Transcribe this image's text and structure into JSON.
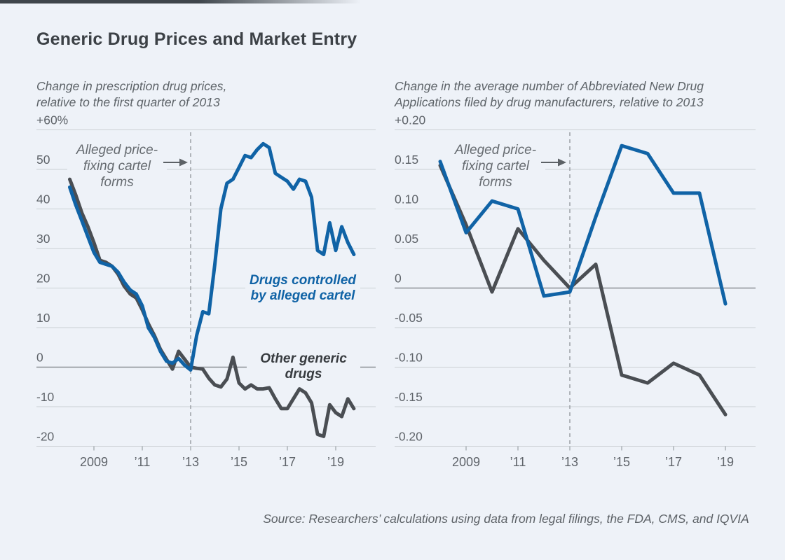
{
  "page": {
    "title": "Generic Drug Prices and Market Entry",
    "source": "Source: Researchers’ calculations using data from legal filings, the FDA, CMS, and IQVIA",
    "colors": {
      "background": "#eef2f8",
      "blue": "#1063a6",
      "gray": "#4a4e53",
      "grid": "#cbd0d4",
      "zero_line": "#898e93",
      "dashed": "#a0a5aa",
      "tick": "#a7adb2",
      "axis_text": "#5f646a",
      "annotation_text": "#666b70",
      "arrow": "#5c6166",
      "title_text": "#3c4146",
      "top_bar": "#3f464c"
    }
  },
  "chart_data": [
    {
      "type": "line",
      "subtitle_lines": [
        "Change in prescription drug prices,",
        "relative to the first quarter of 2013"
      ],
      "ylim": [
        -20,
        60
      ],
      "yticks": {
        "values": [
          60,
          50,
          40,
          30,
          20,
          10,
          0,
          -10,
          -20
        ],
        "labels": [
          "+60%",
          "50",
          "40",
          "30",
          "20",
          "10",
          "0",
          "-10",
          "-20"
        ]
      },
      "xticks": {
        "values": [
          2009,
          2011,
          2013,
          2015,
          2017,
          2019
        ],
        "labels": [
          "2009",
          "’11",
          "’13",
          "’15",
          "’17",
          "’19"
        ]
      },
      "grid": true,
      "event_line_year": 2013,
      "annotation": {
        "lines": [
          "Alleged price-",
          "fixing cartel",
          "forms"
        ]
      },
      "series": [
        {
          "name": "Drugs controlled by alleged cartel",
          "label_lines": [
            "Drugs controlled",
            "by alleged cartel"
          ],
          "color": "#1063a6",
          "x_start": 2008.0,
          "x_step": 0.25,
          "values": [
            45.5,
            41,
            37,
            33,
            29,
            26.5,
            26,
            25.5,
            24,
            21.5,
            19.5,
            18.5,
            15.5,
            10,
            7.5,
            4,
            1.5,
            1,
            2.2,
            0.5,
            -0.7,
            8,
            14,
            13.5,
            26,
            40,
            46.5,
            47.5,
            50.5,
            53.5,
            53,
            55,
            56.5,
            55.5,
            49,
            48,
            47,
            45,
            47.5,
            47,
            43,
            29.5,
            28.5,
            36.5,
            29.5,
            35.5,
            31.5,
            28.5
          ]
        },
        {
          "name": "Other generic drugs",
          "label_lines": [
            "Other generic",
            "drugs"
          ],
          "color": "#4a4e53",
          "x_start": 2008.0,
          "x_step": 0.25,
          "values": [
            47.5,
            43.5,
            39,
            35.5,
            31.5,
            27,
            26.5,
            25.5,
            23.5,
            20.5,
            18.5,
            17.5,
            14.5,
            11,
            8,
            4.5,
            2,
            -0.5,
            4,
            2,
            0,
            -0.3,
            -0.5,
            -2.8,
            -4.5,
            -5,
            -3,
            2.5,
            -4,
            -5.5,
            -4.5,
            -5.5,
            -5.5,
            -5.2,
            -8,
            -10.5,
            -10.5,
            -8,
            -5.5,
            -6.5,
            -9,
            -17,
            -17.5,
            -9.5,
            -11.5,
            -12.5,
            -8,
            -10.5
          ]
        }
      ]
    },
    {
      "type": "line",
      "subtitle_lines": [
        "Change in the average number of Abbreviated New Drug",
        "Applications filed by drug manufacturers, relative to 2013"
      ],
      "ylim": [
        -0.2,
        0.2
      ],
      "yticks": {
        "values": [
          0.2,
          0.15,
          0.1,
          0.05,
          0,
          -0.05,
          -0.1,
          -0.15,
          -0.2
        ],
        "labels": [
          "+0.20",
          "0.15",
          "0.10",
          "0.05",
          "0",
          "-0.05",
          "-0.10",
          "-0.15",
          "-0.20"
        ]
      },
      "xticks": {
        "values": [
          2009,
          2011,
          2013,
          2015,
          2017,
          2019
        ],
        "labels": [
          "2009",
          "’11",
          "’13",
          "’15",
          "’17",
          "’19"
        ]
      },
      "grid": true,
      "event_line_year": 2013,
      "annotation": {
        "lines": [
          "Alleged price-",
          "fixing cartel",
          "forms"
        ]
      },
      "series": [
        {
          "name": "Drugs controlled by alleged cartel",
          "color": "#1063a6",
          "x_start": 2008,
          "x_step": 1,
          "values": [
            0.16,
            0.07,
            0.11,
            0.1,
            -0.01,
            -0.005,
            0.09,
            0.18,
            0.17,
            0.12,
            0.12,
            -0.02
          ]
        },
        {
          "name": "Other generic drugs",
          "color": "#4a4e53",
          "x_start": 2008,
          "x_step": 1,
          "values": [
            0.155,
            0.08,
            -0.005,
            0.075,
            0.035,
            0,
            0.03,
            -0.11,
            -0.12,
            -0.095,
            -0.11,
            -0.16
          ]
        }
      ]
    }
  ]
}
